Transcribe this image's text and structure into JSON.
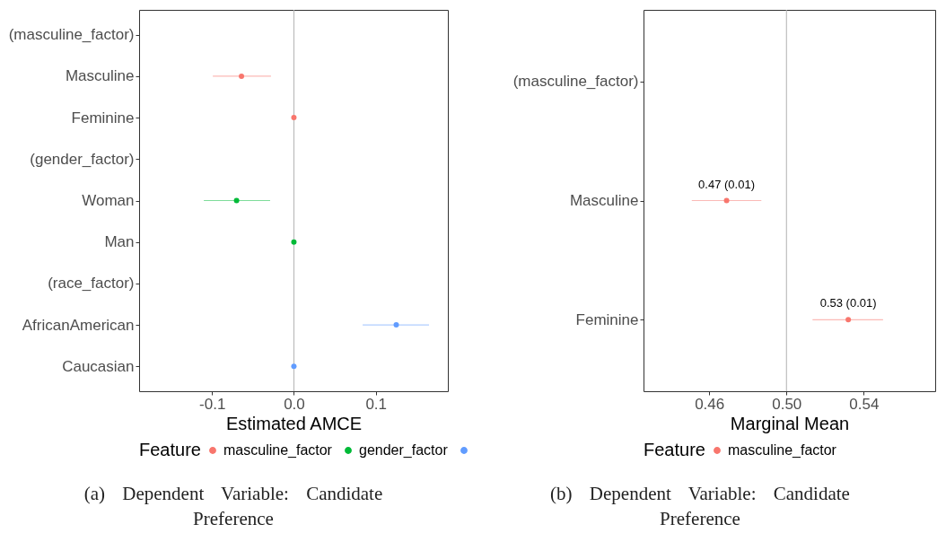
{
  "chart_data": [
    {
      "type": "scatter",
      "orientation": "horizontal",
      "xlabel": "Estimated AMCE",
      "legend_title": "Feature",
      "legend": "bottom",
      "grid": false,
      "marker": "circle",
      "categories": [
        "(masculine_factor)",
        "Masculine",
        "Feminine",
        "(gender_factor)",
        "Woman",
        "Man",
        "(race_factor)",
        "AfricanAmerican",
        "Caucasian"
      ],
      "xlim": [
        -0.189,
        0.188
      ],
      "xticks": [
        -0.1,
        {
          "value": 0,
          "label": "0.0"
        },
        0.1
      ],
      "series": [
        {
          "name": "masculine_factor",
          "color": "#f8766d",
          "values": [
            null,
            -0.064,
            0,
            null,
            null,
            null,
            null,
            null,
            null
          ],
          "errors": [
            null,
            [
              -0.099,
              -0.028
            ],
            null,
            null,
            null,
            null,
            null,
            null,
            null
          ]
        },
        {
          "name": "gender_factor",
          "color": "#00ba38",
          "values": [
            null,
            null,
            null,
            null,
            -0.07,
            0,
            null,
            null,
            null
          ],
          "errors": [
            null,
            null,
            null,
            null,
            [
              -0.11,
              -0.029
            ],
            null,
            null,
            null,
            null
          ]
        },
        {
          "color": "#619cff",
          "values": [
            null,
            null,
            null,
            null,
            null,
            null,
            null,
            0.125,
            0
          ],
          "errors": [
            null,
            null,
            null,
            null,
            null,
            null,
            null,
            [
              0.084,
              0.165
            ],
            null
          ]
        }
      ],
      "ref_lines": [
        {
          "axis": "x",
          "value": 0,
          "color": "#b3b3b3"
        }
      ],
      "annotations": [
        "(a) Dependent Variable: Candidate Preference"
      ]
    },
    {
      "type": "scatter",
      "orientation": "horizontal",
      "xlabel": "Marginal Mean",
      "legend_title": "Feature",
      "legend": "bottom",
      "grid": false,
      "marker": "circle",
      "categories": [
        "(masculine_factor)",
        "Masculine",
        "Feminine"
      ],
      "xlim": [
        0.426,
        0.577
      ],
      "xticks": [
        0.46,
        {
          "value": 0.5,
          "label": "0.50"
        },
        0.54
      ],
      "series": [
        {
          "name": "masculine_factor",
          "color": "#f8766d",
          "values": [
            null,
            0.469,
            0.532
          ],
          "errors": [
            null,
            [
              0.451,
              0.487
            ],
            [
              0.5135,
              0.55
            ]
          ],
          "value_labels": [
            null,
            "0.47 (0.01)",
            "0.53 (0.01)"
          ]
        }
      ],
      "ref_lines": [
        {
          "axis": "x",
          "value": 0.5,
          "color": "#b3b3b3"
        }
      ],
      "annotations": [
        "(b) Dependent Variable: Candidate Preference"
      ]
    }
  ]
}
